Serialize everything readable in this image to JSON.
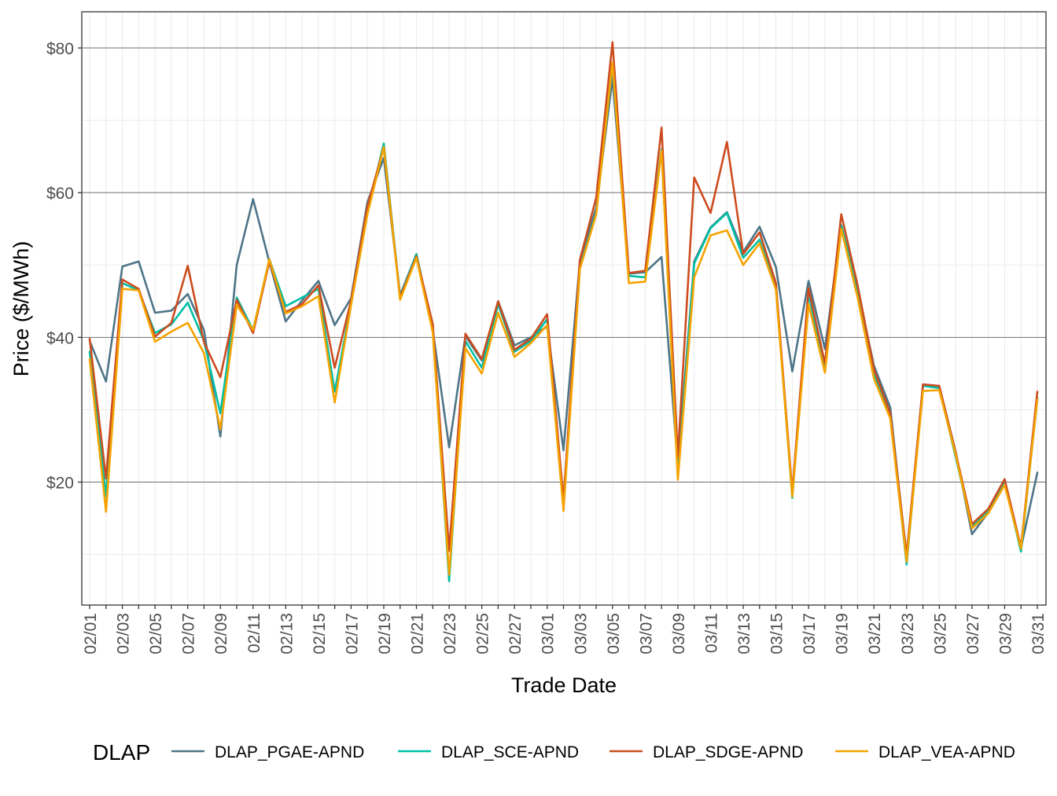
{
  "chart_data": {
    "type": "line",
    "xlabel": "Trade Date",
    "ylabel": "Price ($/MWh)",
    "ylim": [
      3,
      85
    ],
    "y_ticks": [
      20,
      40,
      60,
      80
    ],
    "y_tick_labels": [
      "$20",
      "$40",
      "$60",
      "$80"
    ],
    "grid": true,
    "legend": {
      "title": "DLAP",
      "position": "bottom"
    },
    "x": [
      "02/01",
      "02/02",
      "02/03",
      "02/04",
      "02/05",
      "02/06",
      "02/07",
      "02/08",
      "02/09",
      "02/10",
      "02/11",
      "02/12",
      "02/13",
      "02/14",
      "02/15",
      "02/16",
      "02/17",
      "02/18",
      "02/19",
      "02/20",
      "02/21",
      "02/22",
      "02/23",
      "02/24",
      "02/25",
      "02/26",
      "02/27",
      "02/28",
      "03/01",
      "03/02",
      "03/03",
      "03/04",
      "03/05",
      "03/06",
      "03/07",
      "03/08",
      "03/09",
      "03/10",
      "03/11",
      "03/12",
      "03/13",
      "03/14",
      "03/15",
      "03/16",
      "03/17",
      "03/18",
      "03/19",
      "03/20",
      "03/21",
      "03/22",
      "03/23",
      "03/24",
      "03/25",
      "03/26",
      "03/27",
      "03/28",
      "03/29",
      "03/30",
      "03/31"
    ],
    "x_tick_labels": [
      "02/01",
      "02/03",
      "02/05",
      "02/07",
      "02/09",
      "02/11",
      "02/13",
      "02/15",
      "02/17",
      "02/19",
      "02/21",
      "02/23",
      "02/25",
      "02/27",
      "03/01",
      "03/03",
      "03/05",
      "03/07",
      "03/09",
      "03/11",
      "03/13",
      "03/15",
      "03/17",
      "03/19",
      "03/21",
      "03/23",
      "03/25",
      "03/27",
      "03/29",
      "03/31"
    ],
    "series": [
      {
        "name": "DLAP_PGAE-APND",
        "color": "#4e7587",
        "values": [
          39.5,
          33.9,
          49.8,
          50.5,
          43.4,
          43.7,
          46.0,
          41.0,
          26.3,
          50.0,
          59.1,
          50.4,
          42.2,
          45.1,
          47.8,
          41.7,
          45.4,
          58.7,
          64.8,
          45.8,
          51.5,
          41.0,
          24.8,
          40.2,
          36.8,
          45.0,
          38.9,
          40.0,
          41.5,
          24.4,
          50.5,
          57.9,
          75.8,
          48.8,
          49.0,
          51.1,
          22.3,
          50.5,
          55.2,
          57.3,
          51.8,
          55.3,
          49.7,
          35.3,
          47.8,
          38.4,
          55.5,
          46.5,
          36.1,
          30.3,
          9.4,
          33.5,
          33.2,
          24.2,
          12.8,
          15.8,
          20.2,
          10.9,
          21.3
        ]
      },
      {
        "name": "DLAP_SCE-APND",
        "color": "#00bfa6",
        "values": [
          38.0,
          18.0,
          47.5,
          46.5,
          40.6,
          41.8,
          44.8,
          39.5,
          29.5,
          45.5,
          41.0,
          50.8,
          44.3,
          45.5,
          46.7,
          32.5,
          44.6,
          57.3,
          66.8,
          45.6,
          51.5,
          41.2,
          6.3,
          39.5,
          35.8,
          44.6,
          38.0,
          39.5,
          42.5,
          16.8,
          49.5,
          57.2,
          77.6,
          48.5,
          48.3,
          66.0,
          20.8,
          50.2,
          55.1,
          57.2,
          51.0,
          53.5,
          47.0,
          17.8,
          46.0,
          35.8,
          55.5,
          46.0,
          34.8,
          29.5,
          8.6,
          33.3,
          33.0,
          23.5,
          13.8,
          16.0,
          20.0,
          10.4,
          31.6
        ]
      },
      {
        "name": "DLAP_SDGE-APND",
        "color": "#cc4c1f",
        "values": [
          39.8,
          20.5,
          48.0,
          46.7,
          40.1,
          42.0,
          49.9,
          39.3,
          34.5,
          45.2,
          40.6,
          50.5,
          43.5,
          44.6,
          47.2,
          35.8,
          45.1,
          58.1,
          66.3,
          45.5,
          51.2,
          41.8,
          10.5,
          40.5,
          37.0,
          45.0,
          38.3,
          39.8,
          43.2,
          17.5,
          50.7,
          59.3,
          80.8,
          48.9,
          49.2,
          69.0,
          23.5,
          62.1,
          57.2,
          67.0,
          51.5,
          54.5,
          47.5,
          18.6,
          46.8,
          36.4,
          57.0,
          47.2,
          35.6,
          29.5,
          9.9,
          33.5,
          33.3,
          24.1,
          14.2,
          16.3,
          20.4,
          11.0,
          32.5
        ]
      },
      {
        "name": "DLAP_VEA-APND",
        "color": "#f5a300",
        "values": [
          37.0,
          15.9,
          46.7,
          46.5,
          39.4,
          40.8,
          42.0,
          37.8,
          27.3,
          44.5,
          41.0,
          50.8,
          43.3,
          44.3,
          45.7,
          31.0,
          44.5,
          57.0,
          66.3,
          45.2,
          51.0,
          40.7,
          7.2,
          38.5,
          35.0,
          43.4,
          37.3,
          39.2,
          41.7,
          16.0,
          49.4,
          57.0,
          78.0,
          47.5,
          47.7,
          65.8,
          20.3,
          48.3,
          54.1,
          54.8,
          50.0,
          53.0,
          46.6,
          18.0,
          44.6,
          35.1,
          55.0,
          45.5,
          34.3,
          28.8,
          9.0,
          32.6,
          32.7,
          23.8,
          13.6,
          15.7,
          19.6,
          10.8,
          31.4
        ]
      }
    ]
  }
}
